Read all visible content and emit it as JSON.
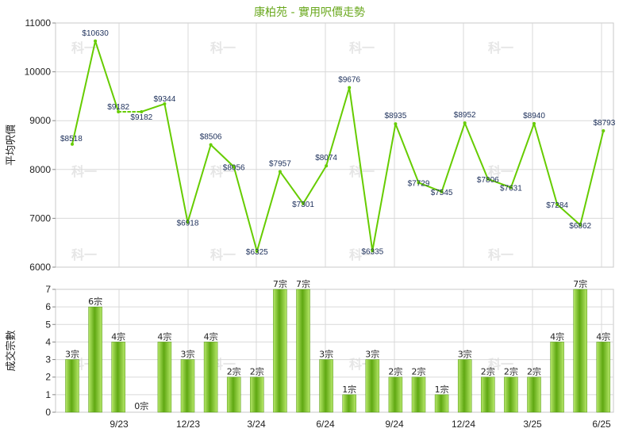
{
  "chart_title": "康柏苑 - 實用呎價走勢",
  "watermark_text": "科一",
  "colors": {
    "line": "#66cc00",
    "bar_light": "#b7e86a",
    "bar_dark": "#5fa812",
    "title": "#6aa81e",
    "grid": "#d9d9d9"
  },
  "x_ticks": [
    "9/23",
    "12/23",
    "3/24",
    "6/24",
    "9/24",
    "12/24",
    "3/25",
    "6/25"
  ],
  "chart_data": [
    {
      "type": "line",
      "title": "康柏苑 - 實用呎價走勢",
      "ylabel": "平均呎價",
      "ylim": [
        6000,
        11000
      ],
      "yticks": [
        6000,
        7000,
        8000,
        9000,
        10000,
        11000
      ],
      "grid": true,
      "values": [
        8518,
        10630,
        9182,
        9182,
        9344,
        6918,
        8506,
        8056,
        6325,
        7957,
        7301,
        8074,
        9676,
        6335,
        8935,
        7729,
        7545,
        8952,
        7806,
        7631,
        8940,
        7284,
        6862,
        8793
      ],
      "labels": [
        "$8518",
        "$10630",
        "$9182",
        "$9182",
        "$9344",
        "$6918",
        "$8506",
        "$8056",
        "$6325",
        "$7957",
        "$7301",
        "$8074",
        "$9676",
        "$6335",
        "$8935",
        "$7729",
        "$7545",
        "$8952",
        "$7806",
        "$7631",
        "$8940",
        "$7284",
        "$6862",
        "$8793"
      ],
      "dashed_segment_index": 2
    },
    {
      "type": "bar",
      "ylabel": "成交宗數",
      "ylim": [
        0,
        7
      ],
      "yticks": [
        0,
        1,
        2,
        3,
        4,
        5,
        6,
        7
      ],
      "grid": true,
      "values": [
        3,
        6,
        4,
        0,
        4,
        3,
        4,
        2,
        2,
        7,
        7,
        3,
        1,
        3,
        2,
        2,
        1,
        3,
        2,
        2,
        2,
        4,
        7,
        4
      ],
      "labels": [
        "3宗",
        "6宗",
        "4宗",
        "0宗",
        "4宗",
        "3宗",
        "4宗",
        "2宗",
        "2宗",
        "7宗",
        "7宗",
        "3宗",
        "1宗",
        "3宗",
        "2宗",
        "2宗",
        "1宗",
        "3宗",
        "2宗",
        "2宗",
        "2宗",
        "4宗",
        "7宗",
        "4宗"
      ]
    }
  ]
}
